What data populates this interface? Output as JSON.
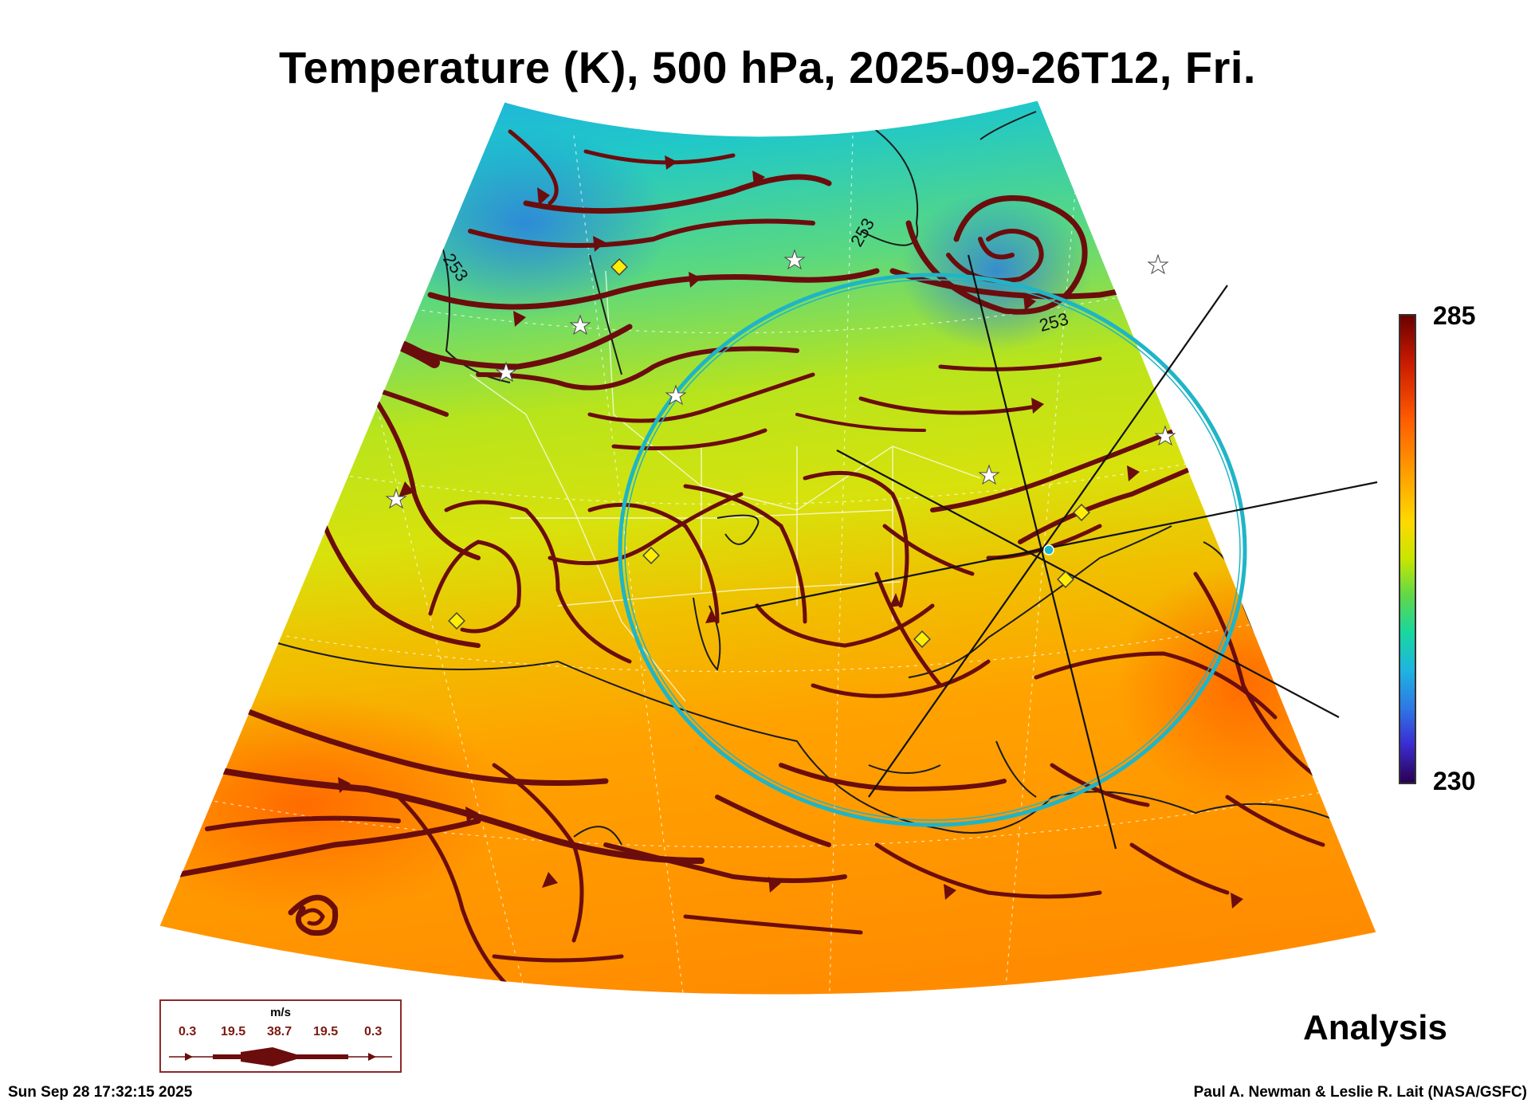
{
  "title": "Temperature (K), 500 hPa, 2025-09-26T12, Fri.",
  "colorbar": {
    "max": "285",
    "min": "230"
  },
  "contour_labels": [
    "253",
    "253",
    "253"
  ],
  "stamp": "Analysis",
  "timestamp": "Sun Sep 28 17:32:15 2025",
  "credit": "Paul A. Newman & Leslie R. Lait (NASA/GSFC)",
  "wind_legend": {
    "unit": "m/s",
    "ticks": [
      "0.3",
      "19.5",
      "38.7",
      "19.5",
      "0.3"
    ]
  },
  "colors": {
    "streamline": "#6b0d0d",
    "ring": "#1fb5c8",
    "marker_diamond": "#ffee00"
  }
}
